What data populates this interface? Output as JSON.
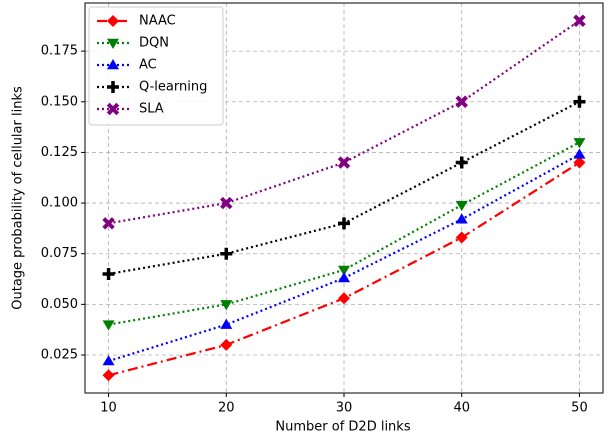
{
  "chart_data": {
    "type": "line",
    "xlabel": "Number of D2D links",
    "ylabel": "Outage probability of cellular links",
    "x": [
      10,
      20,
      30,
      40,
      50
    ],
    "xlim": [
      8,
      52
    ],
    "xticks": [
      10,
      20,
      30,
      40,
      50
    ],
    "ylim": [
      0.00625,
      0.19875
    ],
    "yticks": [
      0.025,
      {
        "value": 0.05,
        "label": "0.050"
      },
      0.075,
      {
        "value": 0.1,
        "label": "0.100"
      },
      0.125,
      {
        "value": 0.15,
        "label": "0.150"
      },
      0.175
    ],
    "grid": true,
    "legend": "upper left",
    "series": [
      {
        "name": "NAAC",
        "color": "#ff0000",
        "marker": "diamond",
        "linestyle": "dashdot",
        "values": [
          0.015,
          0.03,
          0.053,
          0.083,
          0.12
        ]
      },
      {
        "name": "DQN",
        "color": "#008000",
        "marker": "triangle-down",
        "linestyle": "dotted",
        "values": [
          0.04,
          0.05,
          0.067,
          0.099,
          0.13
        ]
      },
      {
        "name": "AC",
        "color": "#0000ff",
        "marker": "triangle-up",
        "linestyle": "dotted",
        "values": [
          0.022,
          0.04,
          0.063,
          0.092,
          0.124
        ]
      },
      {
        "name": "Q-learning",
        "color": "#000000",
        "marker": "plus",
        "linestyle": "dotted",
        "values": [
          0.065,
          0.075,
          0.09,
          0.12,
          0.15
        ]
      },
      {
        "name": "SLA",
        "color": "#800080",
        "marker": "x",
        "linestyle": "dotted",
        "values": [
          0.09,
          0.1,
          0.12,
          0.15,
          0.19
        ]
      }
    ]
  }
}
